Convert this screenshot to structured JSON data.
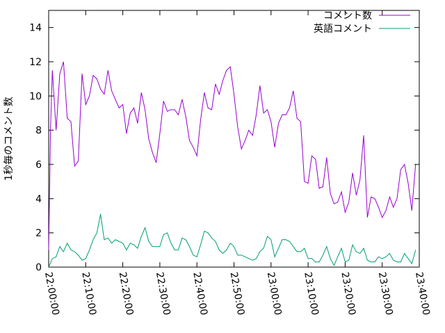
{
  "chart_data": {
    "type": "line",
    "title": "",
    "xlabel": "",
    "ylabel": "1秒毎のコメント数",
    "ylim": [
      0,
      15
    ],
    "xlim_minutes": [
      0,
      40
    ],
    "grid": false,
    "legend_position": "top-right",
    "y_ticks": [
      "0",
      "2",
      "4",
      "6",
      "8",
      "10",
      "12",
      "14"
    ],
    "x_tick_labels": [
      "22:00:00",
      "22:10:00",
      "22:20:00",
      "22:30:00",
      "22:40:00",
      "22:50:00",
      "23:00:00",
      "23:10:00",
      "23:20:00",
      "23:30:00",
      "23:40:00"
    ],
    "series": [
      {
        "name": "コメント数",
        "color": "#9400d3",
        "x_minutes": [
          0.0,
          0.2,
          0.4,
          0.8,
          1.2,
          1.6,
          2.0,
          2.4,
          2.8,
          3.2,
          3.6,
          4.0,
          4.4,
          4.8,
          5.2,
          5.6,
          6.0,
          6.4,
          6.8,
          7.2,
          7.6,
          8.0,
          8.4,
          8.8,
          9.2,
          9.6,
          10.0,
          10.4,
          10.8,
          11.2,
          11.6,
          12.0,
          12.4,
          12.8,
          13.2,
          13.6,
          14.0,
          14.4,
          14.8,
          15.2,
          15.6,
          16.0,
          16.4,
          16.8,
          17.2,
          17.6,
          18.0,
          18.4,
          18.8,
          19.2,
          19.6,
          20.0,
          20.4,
          20.8,
          21.2,
          21.6,
          22.0,
          22.4,
          22.8,
          23.2,
          23.6,
          24.0,
          24.4,
          24.8,
          25.2,
          25.6,
          26.0,
          26.4,
          26.8,
          27.2,
          27.6,
          28.0,
          28.4,
          28.8,
          29.2,
          29.6,
          30.0,
          30.4,
          30.8,
          31.2,
          31.6,
          32.0,
          32.4,
          32.8,
          33.2,
          33.6,
          34.0,
          34.4,
          34.8,
          35.2,
          35.6,
          36.0,
          36.4,
          36.8,
          37.2,
          37.6,
          38.0,
          38.4,
          38.8,
          39.2,
          39.6
        ],
        "values": [
          1.0,
          8.2,
          11.5,
          8.0,
          11.3,
          12.0,
          8.7,
          8.5,
          5.9,
          6.2,
          11.3,
          9.5,
          10.0,
          11.2,
          11.0,
          10.4,
          10.1,
          11.5,
          10.3,
          9.8,
          9.3,
          9.5,
          7.8,
          9.0,
          9.3,
          8.4,
          10.2,
          9.2,
          7.5,
          6.7,
          6.1,
          7.8,
          9.7,
          9.1,
          9.2,
          9.2,
          8.9,
          9.8,
          8.8,
          7.4,
          7.0,
          6.5,
          8.6,
          10.2,
          9.3,
          9.2,
          10.7,
          10.1,
          10.9,
          11.5,
          11.7,
          10.1,
          8.2,
          6.9,
          7.4,
          8.0,
          7.7,
          8.9,
          10.6,
          9.0,
          9.2,
          8.5,
          7.0,
          8.4,
          8.9,
          8.9,
          9.3,
          10.3,
          8.7,
          8.5,
          5.0,
          4.9,
          6.5,
          6.3,
          4.6,
          4.7,
          6.4,
          4.3,
          3.7,
          3.8,
          4.4,
          3.2,
          3.8,
          5.5,
          4.2,
          5.1,
          7.7,
          2.9,
          4.1,
          4.0,
          3.5,
          2.9,
          3.3,
          4.1,
          3.5,
          4.0,
          5.7,
          6.0,
          4.9,
          3.3,
          6.0
        ]
      },
      {
        "name": "英語コメント",
        "color": "#009e73",
        "x_minutes": [
          0.0,
          0.4,
          0.8,
          1.2,
          1.6,
          2.0,
          2.4,
          2.8,
          3.2,
          3.6,
          4.0,
          4.4,
          4.8,
          5.2,
          5.6,
          6.0,
          6.4,
          6.8,
          7.2,
          7.6,
          8.0,
          8.4,
          8.8,
          9.2,
          9.6,
          10.0,
          10.4,
          10.8,
          11.2,
          11.6,
          12.0,
          12.4,
          12.8,
          13.2,
          13.6,
          14.0,
          14.4,
          14.8,
          15.2,
          15.6,
          16.0,
          16.4,
          16.8,
          17.2,
          17.6,
          18.0,
          18.4,
          18.8,
          19.2,
          19.6,
          20.0,
          20.4,
          20.8,
          21.2,
          21.6,
          22.0,
          22.4,
          22.8,
          23.2,
          23.6,
          24.0,
          24.4,
          24.8,
          25.2,
          25.6,
          26.0,
          26.4,
          26.8,
          27.2,
          27.6,
          28.0,
          28.4,
          28.8,
          29.2,
          29.6,
          30.0,
          30.4,
          30.8,
          31.2,
          31.6,
          32.0,
          32.4,
          32.8,
          33.2,
          33.6,
          34.0,
          34.4,
          34.8,
          35.2,
          35.6,
          36.0,
          36.4,
          36.8,
          37.2,
          37.6,
          38.0,
          38.4,
          38.8,
          39.2,
          39.6
        ],
        "values": [
          0.0,
          0.5,
          0.6,
          1.2,
          0.9,
          1.4,
          1.0,
          0.9,
          0.7,
          0.4,
          0.5,
          1.0,
          1.6,
          2.0,
          3.1,
          1.6,
          1.7,
          1.4,
          1.6,
          1.5,
          1.4,
          1.0,
          1.4,
          1.3,
          1.1,
          1.8,
          2.3,
          1.5,
          1.2,
          1.2,
          1.2,
          1.9,
          2.0,
          1.4,
          1.0,
          1.0,
          1.7,
          1.6,
          1.2,
          0.7,
          0.6,
          1.3,
          2.1,
          2.0,
          1.7,
          1.5,
          1.0,
          0.8,
          1.0,
          1.4,
          1.2,
          0.7,
          0.7,
          0.6,
          0.5,
          0.4,
          0.5,
          0.9,
          1.1,
          1.8,
          1.6,
          0.6,
          1.1,
          1.6,
          1.6,
          1.5,
          1.2,
          0.9,
          0.9,
          1.1,
          0.5,
          0.5,
          0.3,
          0.3,
          0.7,
          1.2,
          0.5,
          0.1,
          0.6,
          1.1,
          0.3,
          0.4,
          1.3,
          0.9,
          0.8,
          1.1,
          0.4,
          0.3,
          0.3,
          0.6,
          0.5,
          0.6,
          0.8,
          0.4,
          0.3,
          0.3,
          0.8,
          0.5,
          0.2,
          1.0
        ]
      }
    ]
  }
}
